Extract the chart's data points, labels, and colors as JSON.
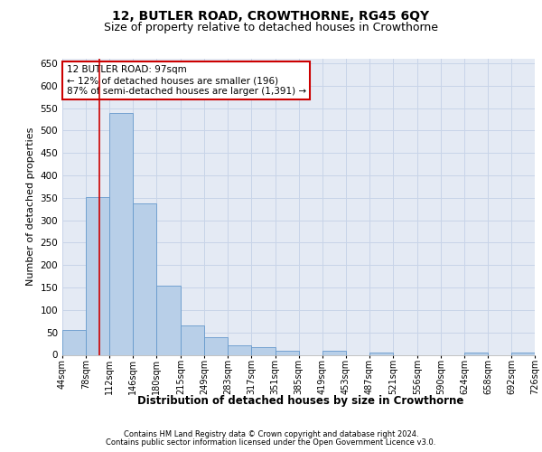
{
  "title_line1": "12, BUTLER ROAD, CROWTHORNE, RG45 6QY",
  "title_line2": "Size of property relative to detached houses in Crowthorne",
  "xlabel": "Distribution of detached houses by size in Crowthorne",
  "ylabel": "Number of detached properties",
  "bar_color": "#b8cfe8",
  "bar_edge_color": "#6699cc",
  "annotation_box_text": "12 BUTLER ROAD: 97sqm\n← 12% of detached houses are smaller (196)\n87% of semi-detached houses are larger (1,391) →",
  "vline_x": 97,
  "vline_color": "#cc0000",
  "footer_line1": "Contains HM Land Registry data © Crown copyright and database right 2024.",
  "footer_line2": "Contains public sector information licensed under the Open Government Licence v3.0.",
  "bins": [
    44,
    78,
    112,
    146,
    180,
    215,
    249,
    283,
    317,
    351,
    385,
    419,
    453,
    487,
    521,
    556,
    590,
    624,
    658,
    692,
    726
  ],
  "bar_heights": [
    55,
    352,
    540,
    337,
    155,
    65,
    40,
    22,
    17,
    10,
    0,
    10,
    0,
    5,
    0,
    0,
    0,
    5,
    0,
    5
  ],
  "ylim": [
    0,
    660
  ],
  "yticks": [
    0,
    50,
    100,
    150,
    200,
    250,
    300,
    350,
    400,
    450,
    500,
    550,
    600,
    650
  ],
  "grid_color": "#c8d4e8",
  "background_color": "#e4eaf4",
  "title_fontsize": 10,
  "subtitle_fontsize": 9,
  "ylabel_fontsize": 8,
  "xlabel_fontsize": 8.5,
  "tick_fontsize": 7,
  "footer_fontsize": 6,
  "annot_fontsize": 7.5
}
